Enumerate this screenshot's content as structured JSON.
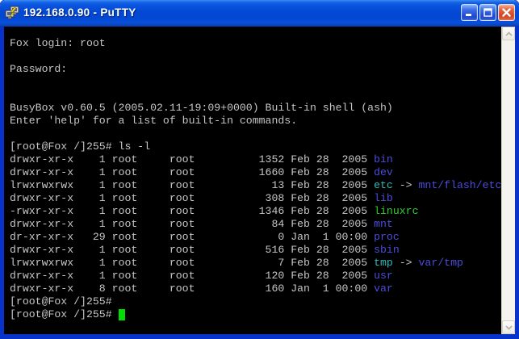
{
  "window": {
    "title": "192.168.0.90 - PuTTY",
    "controls": {
      "minimize": "minimize",
      "maximize": "maximize",
      "close": "close"
    }
  },
  "colors": {
    "foreground": "#c6c6c6",
    "background": "#000000",
    "directory": "#4c4cdc",
    "symlink": "#2fb8b8",
    "executable": "#33cc33",
    "cursor": "#00dd00",
    "frame_blue": "#0833cb"
  },
  "terminal": {
    "boot_lines": [
      "Fox login: root",
      "",
      "Password:",
      "",
      "",
      "BusyBox v0.60.5 (2005.02.11-19:09+0000) Built-in shell (ash)",
      "Enter 'help' for a list of built-in commands.",
      ""
    ],
    "prompt": "[root@Fox /]255#",
    "command": "ls -l",
    "listing": [
      {
        "perms": "drwxr-xr-x",
        "links": 1,
        "owner": "root",
        "group": "root",
        "size": 1352,
        "date": "Feb 28  2005",
        "name": "bin",
        "type": "dir"
      },
      {
        "perms": "drwxr-xr-x",
        "links": 1,
        "owner": "root",
        "group": "root",
        "size": 1660,
        "date": "Feb 28  2005",
        "name": "dev",
        "type": "dir"
      },
      {
        "perms": "lrwxrwxrwx",
        "links": 1,
        "owner": "root",
        "group": "root",
        "size": 13,
        "date": "Feb 28  2005",
        "name": "etc",
        "type": "symlink",
        "target": "mnt/flash/etc"
      },
      {
        "perms": "drwxr-xr-x",
        "links": 1,
        "owner": "root",
        "group": "root",
        "size": 308,
        "date": "Feb 28  2005",
        "name": "lib",
        "type": "dir"
      },
      {
        "perms": "-rwxr-xr-x",
        "links": 1,
        "owner": "root",
        "group": "root",
        "size": 1346,
        "date": "Feb 28  2005",
        "name": "linuxrc",
        "type": "exec"
      },
      {
        "perms": "drwxr-xr-x",
        "links": 1,
        "owner": "root",
        "group": "root",
        "size": 84,
        "date": "Feb 28  2005",
        "name": "mnt",
        "type": "dir"
      },
      {
        "perms": "dr-xr-xr-x",
        "links": 29,
        "owner": "root",
        "group": "root",
        "size": 0,
        "date": "Jan  1 00:00",
        "name": "proc",
        "type": "dir"
      },
      {
        "perms": "drwxr-xr-x",
        "links": 1,
        "owner": "root",
        "group": "root",
        "size": 516,
        "date": "Feb 28  2005",
        "name": "sbin",
        "type": "dir"
      },
      {
        "perms": "lrwxrwxrwx",
        "links": 1,
        "owner": "root",
        "group": "root",
        "size": 7,
        "date": "Feb 28  2005",
        "name": "tmp",
        "type": "symlink",
        "target": "var/tmp"
      },
      {
        "perms": "drwxr-xr-x",
        "links": 1,
        "owner": "root",
        "group": "root",
        "size": 120,
        "date": "Feb 28  2005",
        "name": "usr",
        "type": "dir"
      },
      {
        "perms": "drwxr-xr-x",
        "links": 8,
        "owner": "root",
        "group": "root",
        "size": 160,
        "date": "Jan  1 00:00",
        "name": "var",
        "type": "dir"
      }
    ],
    "trailing_prompt_count": 2,
    "cursor_visible": true
  }
}
